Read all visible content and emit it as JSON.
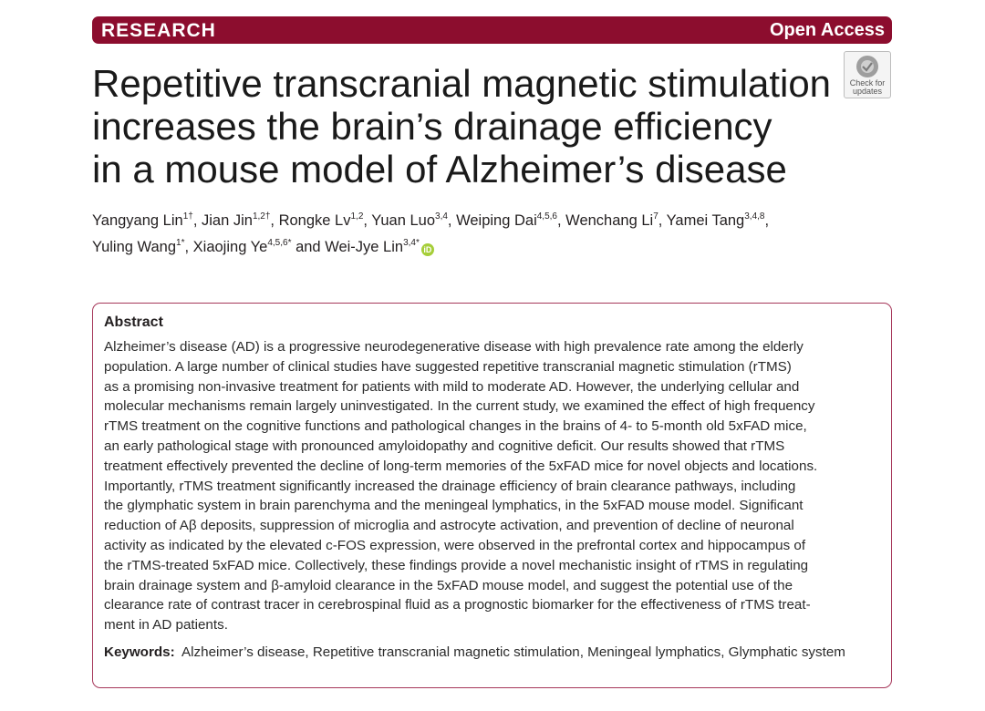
{
  "banner": {
    "section": "RESEARCH",
    "access": "Open Access"
  },
  "title_lines": [
    "Repetitive transcranial magnetic stimulation",
    "increases the brain’s drainage efficiency",
    "in a mouse model of Alzheimer’s disease"
  ],
  "check_for_updates": {
    "line1": "Check for",
    "line2": "updates"
  },
  "authors": [
    {
      "name": "Yangyang Lin",
      "aff": "1†"
    },
    {
      "name": "Jian Jin",
      "aff": "1,2†"
    },
    {
      "name": "Rongke Lv",
      "aff": "1,2"
    },
    {
      "name": "Yuan Luo",
      "aff": "3,4"
    },
    {
      "name": "Weiping Dai",
      "aff": "4,5,6"
    },
    {
      "name": "Wenchang Li",
      "aff": "7"
    },
    {
      "name": "Yamei Tang",
      "aff": "3,4,8"
    },
    {
      "name": "Yuling Wang",
      "aff": "1*"
    },
    {
      "name": "Xiaojing Ye",
      "aff": "4,5,6*"
    },
    {
      "name": "Wei-Jye Lin",
      "aff": "3,4*"
    }
  ],
  "authors_and": "and",
  "orcid_label": "iD",
  "abstract": {
    "heading": "Abstract",
    "lines": [
      "Alzheimer’s disease (AD) is a progressive neurodegenerative disease with high prevalence rate among the elderly",
      "population. A large number of clinical studies have suggested repetitive transcranial magnetic stimulation (rTMS)",
      "as a promising non-invasive treatment for patients with mild to moderate AD. However, the underlying cellular and",
      "molecular mechanisms remain largely uninvestigated. In the current study, we examined the effect of high frequency",
      "rTMS treatment on the cognitive functions and pathological changes in the brains of 4- to 5-month old 5xFAD mice,",
      "an early pathological stage with pronounced amyloidopathy and cognitive deficit. Our results showed that rTMS",
      "treatment effectively prevented the decline of long-term memories of the 5xFAD mice for novel objects and locations.",
      "Importantly, rTMS treatment significantly increased the drainage efficiency of brain clearance pathways, including",
      "the glymphatic system in brain parenchyma and the meningeal lymphatics, in the 5xFAD mouse model. Significant",
      "reduction of Aβ deposits, suppression of microglia and astrocyte activation, and prevention of decline of neuronal",
      "activity as indicated by the elevated c-FOS expression, were observed in the prefrontal cortex and hippocampus of",
      "the rTMS-treated 5xFAD mice. Collectively, these findings provide a novel mechanistic insight of rTMS in regulating",
      "brain drainage system and β-amyloid clearance in the 5xFAD mouse model, and suggest the potential use of the",
      "clearance rate of contrast tracer in cerebrospinal fluid as a prognostic biomarker for the effectiveness of rTMS treat-",
      "ment in AD patients."
    ]
  },
  "keywords": {
    "label": "Keywords:",
    "text": "Alzheimer’s disease, Repetitive transcranial magnetic stimulation, Meningeal lymphatics, Glymphatic system"
  },
  "colors": {
    "banner": "#8c0d2e",
    "box_border": "#a6375a",
    "orcid": "#a6ce39"
  },
  "icons": [
    "check-for-updates-icon",
    "orcid-icon"
  ]
}
